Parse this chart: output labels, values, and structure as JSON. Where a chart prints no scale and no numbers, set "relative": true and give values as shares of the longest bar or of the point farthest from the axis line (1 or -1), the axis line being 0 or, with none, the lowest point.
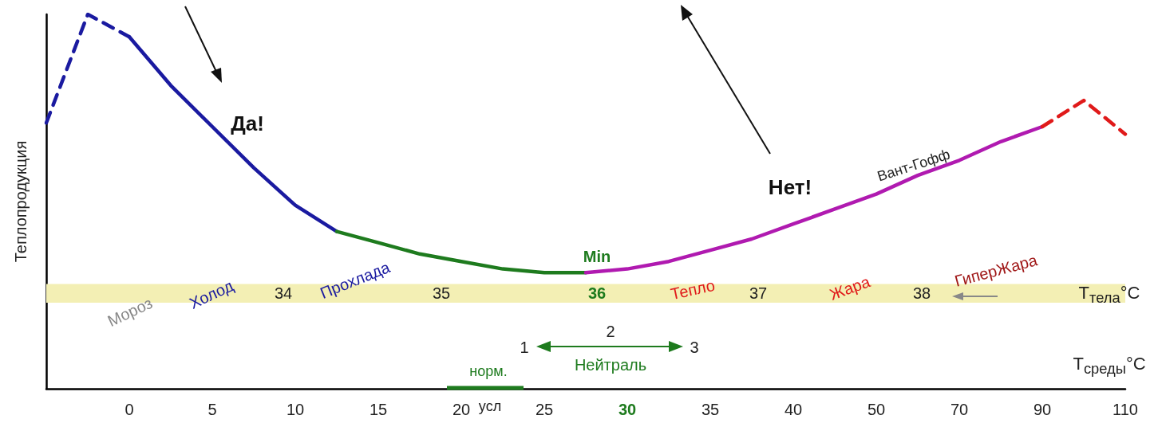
{
  "chart_data": {
    "type": "line",
    "relative": true,
    "ylabel": "Теплопродукция",
    "categories": [
      null,
      null,
      "0",
      null,
      "5",
      null,
      "10",
      null,
      "15",
      null,
      "20",
      null,
      "25",
      null,
      "30",
      null,
      "35",
      null,
      "40",
      null,
      "50",
      null,
      "70",
      null,
      "90",
      null,
      "110"
    ],
    "series": [
      {
        "color": "#1a1aa0",
        "line_style": "dashed",
        "values": [
          0.71,
          1,
          0.94,
          null,
          null,
          null,
          null,
          null,
          null,
          null,
          null,
          null,
          null,
          null,
          null,
          null,
          null,
          null,
          null,
          null,
          null,
          null,
          null,
          null,
          null,
          null,
          null
        ]
      },
      {
        "color": "#1a1aa0",
        "line_style": "solid",
        "values": [
          null,
          null,
          0.94,
          0.81,
          0.7,
          0.59,
          0.49,
          0.42,
          null,
          null,
          null,
          null,
          null,
          null,
          null,
          null,
          null,
          null,
          null,
          null,
          null,
          null,
          null,
          null,
          null,
          null,
          null
        ]
      },
      {
        "color": "#1e7b1e",
        "line_style": "solid",
        "values": [
          null,
          null,
          null,
          null,
          null,
          null,
          null,
          0.42,
          0.39,
          0.36,
          0.34,
          0.32,
          0.31,
          0.31,
          null,
          null,
          null,
          null,
          null,
          null,
          null,
          null,
          null,
          null,
          null,
          null,
          null
        ]
      },
      {
        "color": "#b01ab0",
        "line_style": "solid",
        "values": [
          null,
          null,
          null,
          null,
          null,
          null,
          null,
          null,
          null,
          null,
          null,
          null,
          null,
          0.31,
          0.32,
          0.34,
          0.37,
          0.4,
          0.44,
          0.48,
          0.52,
          0.57,
          0.61,
          0.66,
          0.7,
          null,
          null
        ]
      },
      {
        "color": "#e01a1a",
        "line_style": "dashed",
        "values": [
          null,
          null,
          null,
          null,
          null,
          null,
          null,
          null,
          null,
          null,
          null,
          null,
          null,
          null,
          null,
          null,
          null,
          null,
          null,
          null,
          null,
          null,
          null,
          null,
          0.7,
          0.77,
          0.68
        ]
      }
    ],
    "bands": [
      {
        "axis": "y",
        "from": 0.23,
        "to": 0.28,
        "color": "#f3efb4"
      }
    ],
    "annotations": [
      "Да!",
      "Нет!",
      "Вант-Гофф",
      "Min",
      "Мороз",
      "Холод",
      "Прохлада",
      "Тепло",
      "Жара",
      "ГиперЖара",
      "34",
      "35",
      "36",
      "37",
      "38",
      "T$_{тела}$°C",
      "1",
      "2",
      "3",
      "Нейтраль",
      "T$_{среды}$°C",
      "норм.",
      "усл"
    ],
    "grid": false,
    "marker": "none"
  }
}
